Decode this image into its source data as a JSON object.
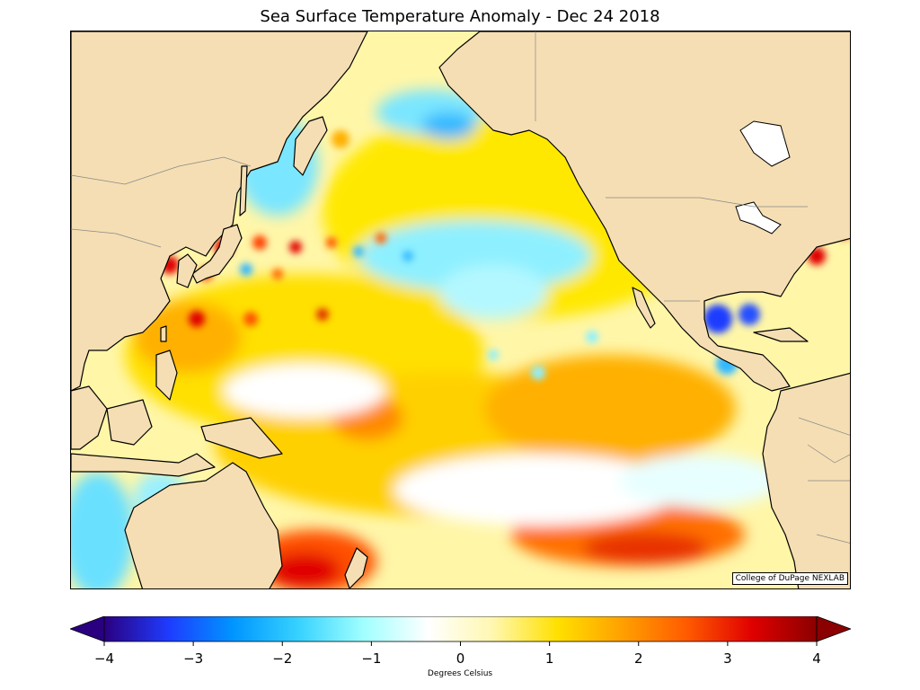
{
  "title": "Sea Surface Temperature Anomaly - Dec 24 2018",
  "credit": "College of DuPage NEXLAB",
  "colorbar": {
    "label": "Degrees Celsius",
    "min": -4,
    "max": 4,
    "ticks": [
      "−4",
      "−3",
      "−2",
      "−1",
      "0",
      "1",
      "2",
      "3",
      "4"
    ],
    "tick_values": [
      -4,
      -3,
      -2,
      -1,
      0,
      1,
      2,
      3,
      4
    ],
    "colors": [
      "#2a0080",
      "#1e3cff",
      "#0096ff",
      "#37d2ff",
      "#a0ffff",
      "#ffffff",
      "#fff7b0",
      "#ffe000",
      "#ffa000",
      "#ff5a00",
      "#e00000",
      "#8b0000"
    ]
  },
  "map": {
    "land_color": "#f5deb3",
    "ocean_base": "#ffffff",
    "region": "North and Tropical Pacific Ocean"
  }
}
